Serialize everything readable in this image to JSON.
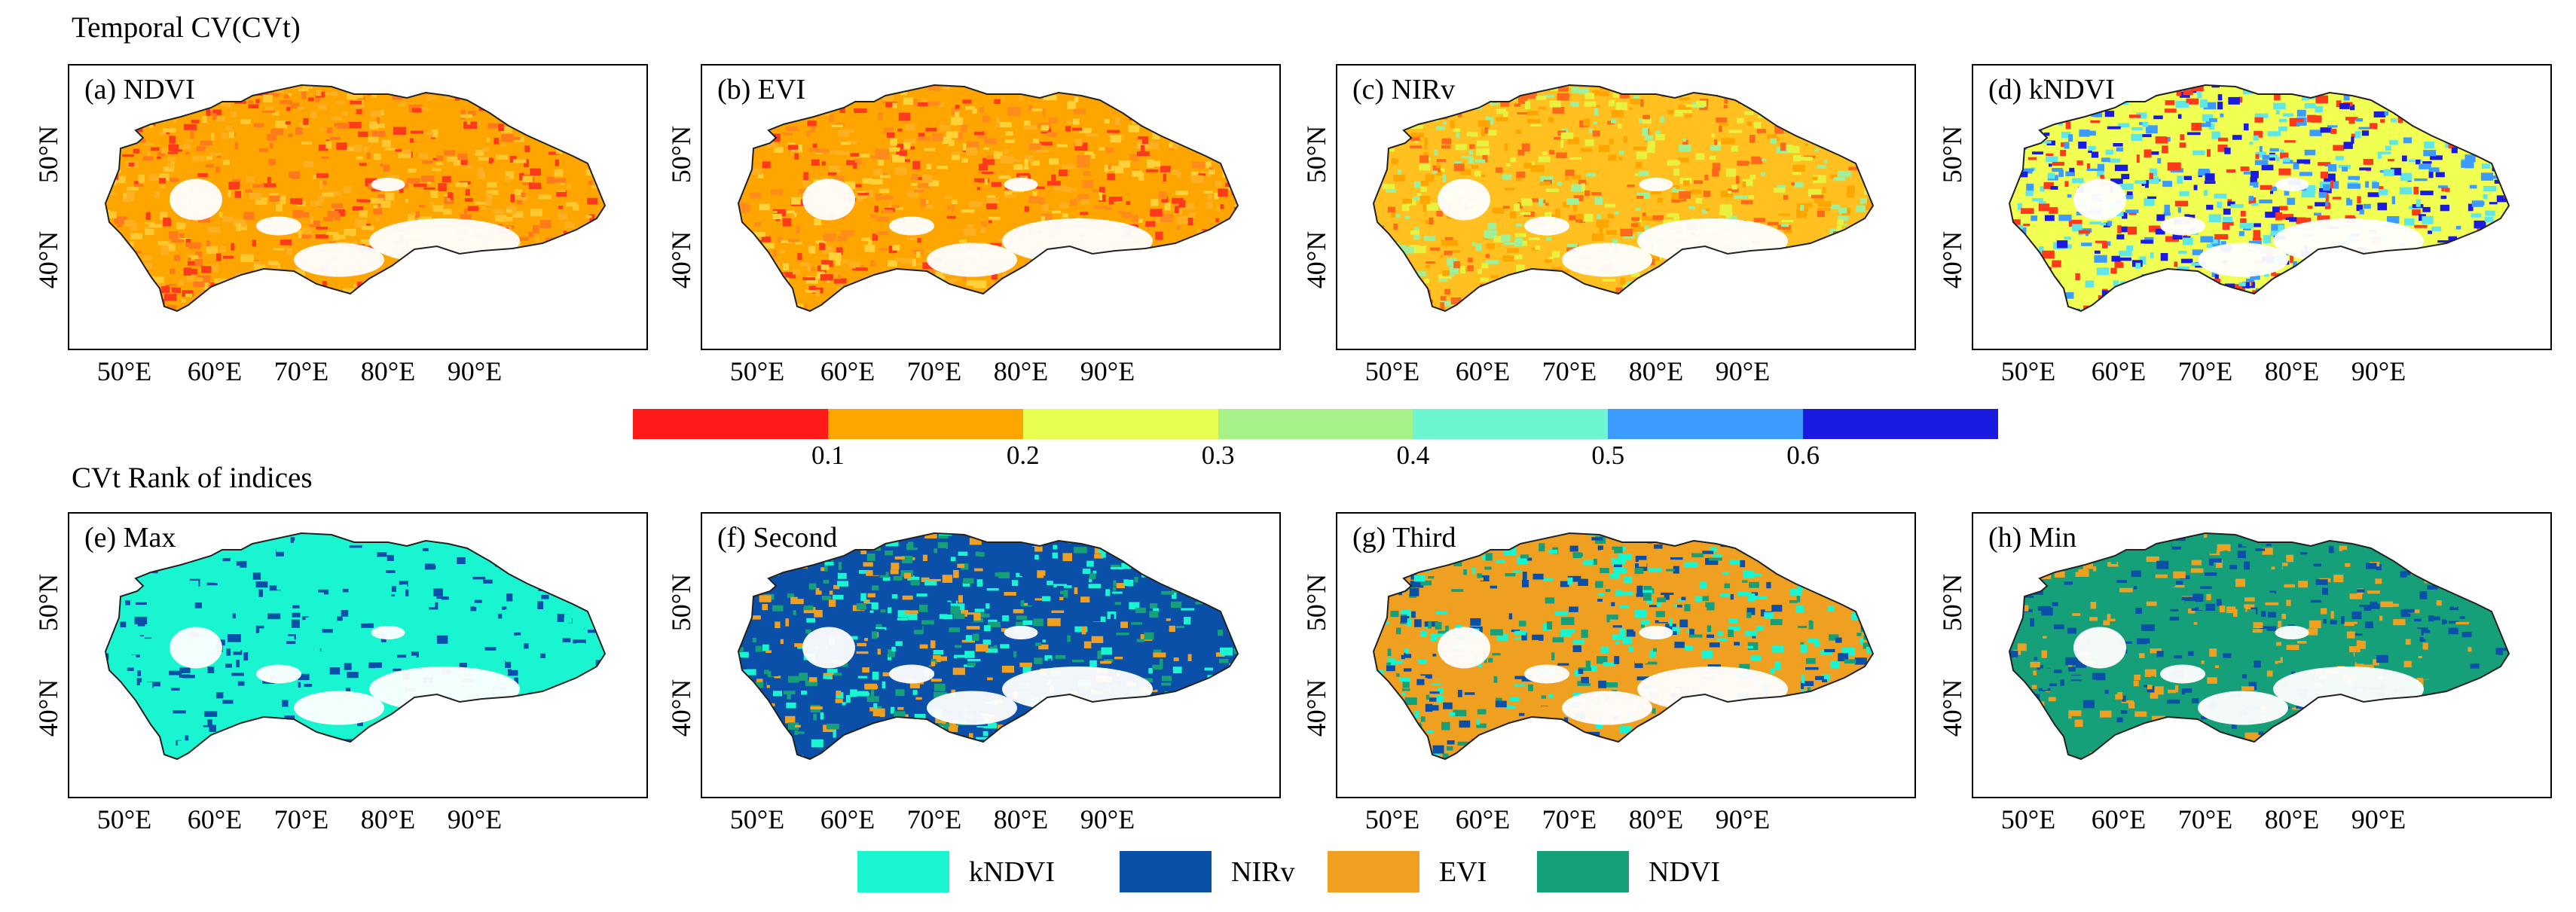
{
  "titles": {
    "top": "Temporal CV(CVt)",
    "bottom": "CVt Rank of indices"
  },
  "axes": {
    "x_ticks": [
      "50°E",
      "60°E",
      "70°E",
      "80°E",
      "90°E"
    ],
    "y_ticks": [
      "50°N",
      "40°N"
    ]
  },
  "colorbar": {
    "colors": [
      "#ff1a1a",
      "#ffa500",
      "#e8ff52",
      "#a6f288",
      "#6cf5cf",
      "#3b9bff",
      "#1a1ae0"
    ],
    "labels": [
      "0.1",
      "0.2",
      "0.3",
      "0.4",
      "0.5",
      "0.6"
    ]
  },
  "panels": [
    {
      "label": "(a) NDVI",
      "row": "top",
      "palette": [
        "#ffa500",
        "#ff7a1a",
        "#ffb020",
        "#ff3a1a",
        "#ffc830"
      ]
    },
    {
      "label": "(b) EVI",
      "row": "top",
      "palette": [
        "#ffa500",
        "#ffb020",
        "#ff8c1a",
        "#ffd23a",
        "#ff3a1a"
      ]
    },
    {
      "label": "(c) NIRv",
      "row": "top",
      "palette": [
        "#ffc020",
        "#e8f040",
        "#ffa500",
        "#9ef09a",
        "#ff6a1a"
      ]
    },
    {
      "label": "(d) kNDVI",
      "row": "top",
      "palette": [
        "#f0ff52",
        "#5fe6e6",
        "#3b9bff",
        "#ff3a1a",
        "#1a1ae0"
      ]
    },
    {
      "label": "(e) Max",
      "row": "bottom",
      "palette": [
        "#19f5d0",
        "#19f5d0",
        "#19f5d0",
        "#0a4fa8",
        "#19f5d0"
      ]
    },
    {
      "label": "(f) Second",
      "row": "bottom",
      "palette": [
        "#0a4fa8",
        "#0a4fa8",
        "#15a07a",
        "#f0a020",
        "#19f5d0"
      ]
    },
    {
      "label": "(g) Third",
      "row": "bottom",
      "palette": [
        "#f0a020",
        "#f0a020",
        "#15a07a",
        "#0a4fa8",
        "#19f5d0"
      ]
    },
    {
      "label": "(h) Min",
      "row": "bottom",
      "palette": [
        "#15a07a",
        "#15a07a",
        "#15a07a",
        "#f0a020",
        "#0a4fa8"
      ]
    }
  ],
  "legend": [
    {
      "label": "kNDVI",
      "color": "#19f5d0"
    },
    {
      "label": "NIRv",
      "color": "#0a4fa8"
    },
    {
      "label": "EVI",
      "color": "#f0a020"
    },
    {
      "label": "NDVI",
      "color": "#15a07a"
    }
  ]
}
